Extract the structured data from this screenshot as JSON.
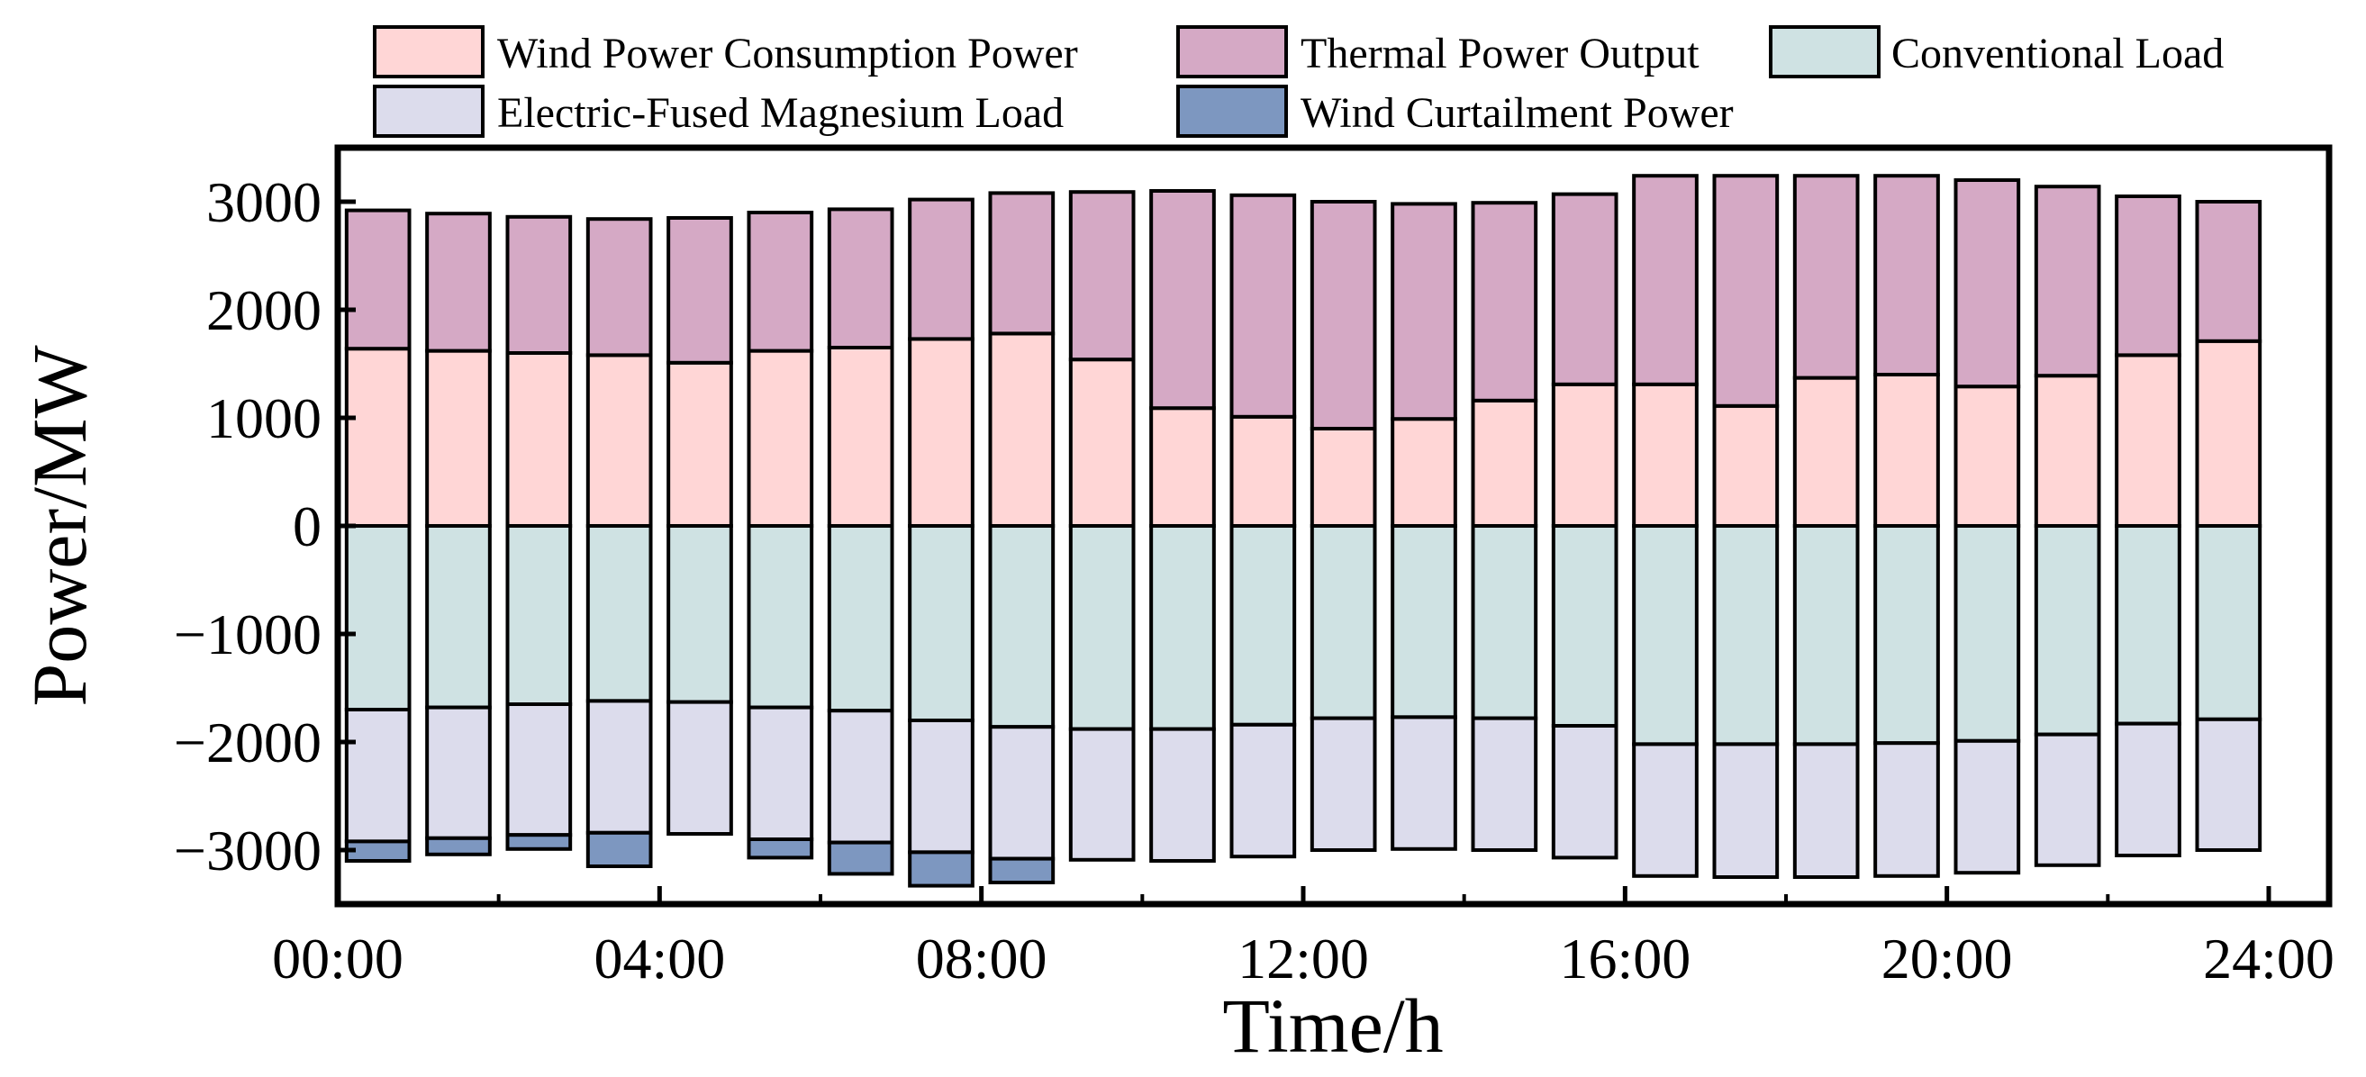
{
  "chart_data": {
    "type": "bar",
    "stacked": true,
    "title": "",
    "xlabel": "Time/h",
    "ylabel": "Power/MW",
    "ylim": [
      -3500,
      3500
    ],
    "yticks": [
      3000,
      2000,
      1000,
      0,
      -1000,
      -2000,
      -3000
    ],
    "ytick_labels": [
      "3000",
      "2000",
      "1000",
      "0",
      "−1000",
      "−2000",
      "−3000"
    ],
    "xlim": [
      0,
      24.75
    ],
    "xticks": [
      0,
      4,
      8,
      12,
      16,
      20,
      24
    ],
    "xtick_labels": [
      "00:00",
      "04:00",
      "08:00",
      "12:00",
      "16:00",
      "20:00",
      "24:00"
    ],
    "x": [
      1,
      2,
      3,
      4,
      5,
      6,
      7,
      8,
      9,
      10,
      11,
      12,
      13,
      14,
      15,
      16,
      17,
      18,
      19,
      20,
      21,
      22,
      23,
      24
    ],
    "legend_position": "top",
    "series": [
      {
        "name": "Wind Power Consumption Power",
        "color": "#ffd6d6",
        "values": [
          1640,
          1620,
          1600,
          1580,
          1510,
          1620,
          1650,
          1730,
          1780,
          1540,
          1090,
          1010,
          900,
          990,
          1160,
          1310,
          1310,
          1110,
          1370,
          1400,
          1290,
          1390,
          1580,
          1710
        ]
      },
      {
        "name": "Thermal Power Output",
        "color": "#d5a9c5",
        "values": [
          1280,
          1270,
          1260,
          1260,
          1340,
          1280,
          1280,
          1290,
          1300,
          1550,
          2010,
          2050,
          2100,
          1990,
          1830,
          1760,
          1930,
          2130,
          1870,
          1840,
          1910,
          1750,
          1470,
          1290
        ]
      },
      {
        "name": "Conventional Load",
        "color": "#cfe2e3",
        "values": [
          -1700,
          -1680,
          -1650,
          -1620,
          -1630,
          -1680,
          -1710,
          -1800,
          -1860,
          -1880,
          -1880,
          -1840,
          -1780,
          -1770,
          -1780,
          -1850,
          -2020,
          -2020,
          -2020,
          -2010,
          -1990,
          -1930,
          -1830,
          -1790
        ]
      },
      {
        "name": "Electric-Fused Magnesium Load",
        "color": "#dcdcec",
        "values": [
          -1220,
          -1210,
          -1210,
          -1220,
          -1220,
          -1220,
          -1220,
          -1220,
          -1220,
          -1210,
          -1220,
          -1220,
          -1220,
          -1220,
          -1220,
          -1220,
          -1220,
          -1230,
          -1230,
          -1230,
          -1220,
          -1210,
          -1220,
          -1210
        ]
      },
      {
        "name": "Wind Curtailment Power",
        "color": "#7d97c0",
        "values": [
          -180,
          -150,
          -130,
          -310,
          0,
          -170,
          -290,
          -310,
          -220,
          0,
          0,
          0,
          0,
          0,
          0,
          0,
          0,
          0,
          0,
          0,
          0,
          0,
          0,
          0
        ]
      }
    ]
  }
}
